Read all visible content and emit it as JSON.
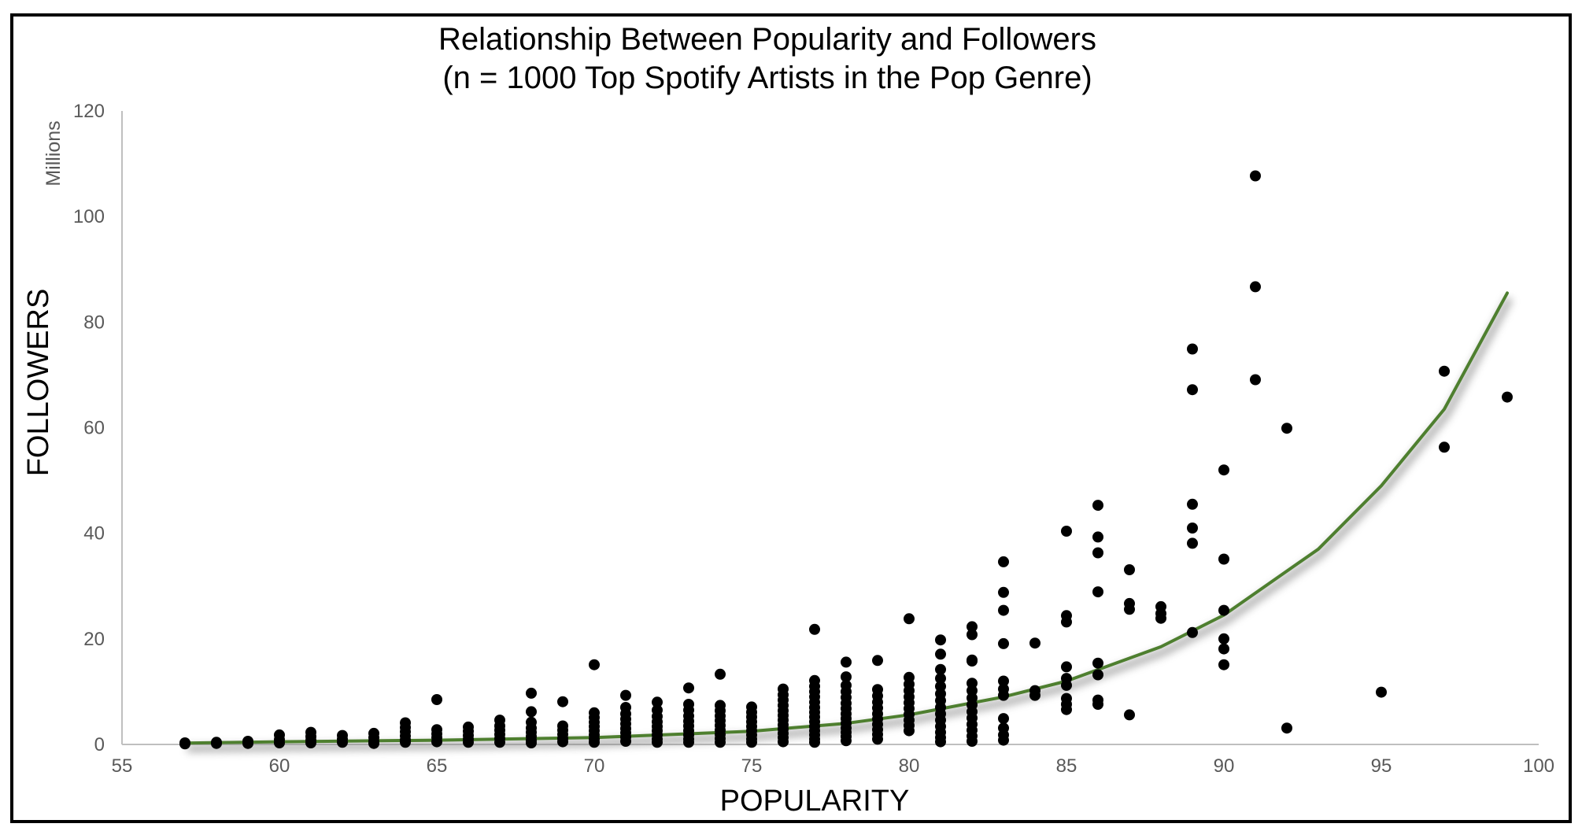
{
  "chart_data": {
    "type": "scatter",
    "title": "Relationship Between Popularity and Followers",
    "subtitle": "(n = 1000 Top Spotify Artists in the Pop Genre)",
    "xlabel": "POPULARITY",
    "ylabel": "FOLLOWERS",
    "y_unit_label": "Millions",
    "xlim": [
      55,
      100
    ],
    "ylim": [
      0,
      120
    ],
    "x_ticks": [
      55,
      60,
      65,
      70,
      75,
      80,
      85,
      90,
      95,
      100
    ],
    "y_ticks": [
      0,
      20,
      40,
      60,
      80,
      100,
      120
    ],
    "x_tick_labels": [
      "55",
      "60",
      "65",
      "70",
      "75",
      "80",
      "85",
      "90",
      "95",
      "100"
    ],
    "y_tick_labels": [
      "0",
      "20",
      "40",
      "60",
      "80",
      "100",
      "120"
    ],
    "grid": false,
    "legend": "none",
    "marker_color": "#000000",
    "trendline": {
      "type": "exponential",
      "color": "#4e7f2f",
      "x_range": [
        57,
        99
      ],
      "points": [
        [
          57,
          0.25
        ],
        [
          60,
          0.5
        ],
        [
          65,
          0.8
        ],
        [
          70,
          1.3
        ],
        [
          75,
          2.5
        ],
        [
          78,
          4.0
        ],
        [
          80,
          5.6
        ],
        [
          83,
          9.0
        ],
        [
          85,
          12.0
        ],
        [
          88,
          18.5
        ],
        [
          90,
          24.5
        ],
        [
          93,
          37.0
        ],
        [
          95,
          49.0
        ],
        [
          97,
          63.5
        ],
        [
          99,
          85.5
        ]
      ]
    },
    "series": [
      {
        "points": [
          [
            57,
            0.3
          ],
          [
            57,
            0.1
          ],
          [
            58,
            0.4
          ],
          [
            58,
            0.2
          ],
          [
            59,
            0.6
          ],
          [
            59,
            0.2
          ],
          [
            60,
            1.8
          ],
          [
            60,
            0.9
          ],
          [
            60,
            0.3
          ],
          [
            61,
            2.3
          ],
          [
            61,
            1.5
          ],
          [
            61,
            0.8
          ],
          [
            61,
            0.3
          ],
          [
            62,
            1.7
          ],
          [
            62,
            1.0
          ],
          [
            62,
            0.4
          ],
          [
            63,
            2.1
          ],
          [
            63,
            1.3
          ],
          [
            63,
            0.6
          ],
          [
            63,
            0.2
          ],
          [
            64,
            4.1
          ],
          [
            64,
            3.2
          ],
          [
            64,
            2.4
          ],
          [
            64,
            1.6
          ],
          [
            64,
            0.9
          ],
          [
            64,
            0.4
          ],
          [
            65,
            8.5
          ],
          [
            65,
            2.8
          ],
          [
            65,
            2.0
          ],
          [
            65,
            1.3
          ],
          [
            65,
            0.5
          ],
          [
            66,
            3.3
          ],
          [
            66,
            2.5
          ],
          [
            66,
            1.7
          ],
          [
            66,
            1.0
          ],
          [
            66,
            0.4
          ],
          [
            67,
            4.6
          ],
          [
            67,
            3.5
          ],
          [
            67,
            2.7
          ],
          [
            67,
            1.9
          ],
          [
            67,
            1.1
          ],
          [
            67,
            0.4
          ],
          [
            68,
            9.7
          ],
          [
            68,
            6.2
          ],
          [
            68,
            4.2
          ],
          [
            68,
            3.1
          ],
          [
            68,
            2.3
          ],
          [
            68,
            1.5
          ],
          [
            68,
            0.8
          ],
          [
            68,
            0.3
          ],
          [
            69,
            8.1
          ],
          [
            69,
            3.5
          ],
          [
            69,
            2.7
          ],
          [
            69,
            1.9
          ],
          [
            69,
            1.1
          ],
          [
            69,
            0.5
          ],
          [
            70,
            15.1
          ],
          [
            70,
            6.0
          ],
          [
            70,
            5.1
          ],
          [
            70,
            4.2
          ],
          [
            70,
            3.4
          ],
          [
            70,
            2.6
          ],
          [
            70,
            1.8
          ],
          [
            70,
            1.0
          ],
          [
            70,
            0.4
          ],
          [
            71,
            9.3
          ],
          [
            71,
            7.0
          ],
          [
            71,
            5.8
          ],
          [
            71,
            4.8
          ],
          [
            71,
            3.9
          ],
          [
            71,
            3.0
          ],
          [
            71,
            2.2
          ],
          [
            71,
            1.4
          ],
          [
            71,
            0.6
          ],
          [
            72,
            8.0
          ],
          [
            72,
            6.5
          ],
          [
            72,
            5.3
          ],
          [
            72,
            4.3
          ],
          [
            72,
            3.4
          ],
          [
            72,
            2.6
          ],
          [
            72,
            1.8
          ],
          [
            72,
            1.0
          ],
          [
            72,
            0.4
          ],
          [
            73,
            10.7
          ],
          [
            73,
            7.6
          ],
          [
            73,
            6.5
          ],
          [
            73,
            5.4
          ],
          [
            73,
            4.4
          ],
          [
            73,
            3.5
          ],
          [
            73,
            2.6
          ],
          [
            73,
            1.8
          ],
          [
            73,
            1.0
          ],
          [
            73,
            0.4
          ],
          [
            74,
            13.3
          ],
          [
            74,
            7.4
          ],
          [
            74,
            6.4
          ],
          [
            74,
            5.4
          ],
          [
            74,
            4.5
          ],
          [
            74,
            3.6
          ],
          [
            74,
            2.7
          ],
          [
            74,
            1.9
          ],
          [
            74,
            1.1
          ],
          [
            74,
            0.4
          ],
          [
            75,
            7.1
          ],
          [
            75,
            6.1
          ],
          [
            75,
            5.2
          ],
          [
            75,
            4.3
          ],
          [
            75,
            3.4
          ],
          [
            75,
            2.6
          ],
          [
            75,
            1.8
          ],
          [
            75,
            1.0
          ],
          [
            75,
            0.4
          ],
          [
            76,
            10.5
          ],
          [
            76,
            9.4
          ],
          [
            76,
            8.4
          ],
          [
            76,
            7.4
          ],
          [
            76,
            6.4
          ],
          [
            76,
            5.5
          ],
          [
            76,
            4.6
          ],
          [
            76,
            3.7
          ],
          [
            76,
            2.9
          ],
          [
            76,
            2.1
          ],
          [
            76,
            1.3
          ],
          [
            76,
            0.5
          ],
          [
            77,
            21.8
          ],
          [
            77,
            12.1
          ],
          [
            77,
            11.0
          ],
          [
            77,
            10.0
          ],
          [
            77,
            9.0
          ],
          [
            77,
            8.0
          ],
          [
            77,
            7.0
          ],
          [
            77,
            6.1
          ],
          [
            77,
            5.2
          ],
          [
            77,
            4.3
          ],
          [
            77,
            3.4
          ],
          [
            77,
            2.6
          ],
          [
            77,
            1.8
          ],
          [
            77,
            1.0
          ],
          [
            77,
            0.4
          ],
          [
            78,
            15.6
          ],
          [
            78,
            12.8
          ],
          [
            78,
            11.2
          ],
          [
            78,
            10.0
          ],
          [
            78,
            8.9
          ],
          [
            78,
            7.8
          ],
          [
            78,
            6.8
          ],
          [
            78,
            5.8
          ],
          [
            78,
            4.9
          ],
          [
            78,
            4.0
          ],
          [
            78,
            3.1
          ],
          [
            78,
            2.3
          ],
          [
            78,
            1.5
          ],
          [
            78,
            0.7
          ],
          [
            79,
            15.9
          ],
          [
            79,
            10.4
          ],
          [
            79,
            9.2
          ],
          [
            79,
            8.0
          ],
          [
            79,
            6.9
          ],
          [
            79,
            5.8
          ],
          [
            79,
            4.8
          ],
          [
            79,
            3.8
          ],
          [
            79,
            2.8
          ],
          [
            79,
            1.9
          ],
          [
            79,
            1.0
          ],
          [
            80,
            23.8
          ],
          [
            80,
            12.7
          ],
          [
            80,
            11.4
          ],
          [
            80,
            10.2
          ],
          [
            80,
            9.0
          ],
          [
            80,
            7.9
          ],
          [
            80,
            6.8
          ],
          [
            80,
            5.7
          ],
          [
            80,
            4.6
          ],
          [
            80,
            3.6
          ],
          [
            80,
            2.6
          ],
          [
            81,
            19.8
          ],
          [
            81,
            17.1
          ],
          [
            81,
            14.2
          ],
          [
            81,
            12.5
          ],
          [
            81,
            11.0
          ],
          [
            81,
            9.6
          ],
          [
            81,
            8.3
          ],
          [
            81,
            7.0
          ],
          [
            81,
            5.8
          ],
          [
            81,
            4.6
          ],
          [
            81,
            3.4
          ],
          [
            81,
            2.3
          ],
          [
            81,
            1.3
          ],
          [
            81,
            0.5
          ],
          [
            82,
            22.3
          ],
          [
            82,
            20.8
          ],
          [
            82,
            16.0
          ],
          [
            82,
            15.8
          ],
          [
            82,
            11.6
          ],
          [
            82,
            10.2
          ],
          [
            82,
            8.8
          ],
          [
            82,
            7.5
          ],
          [
            82,
            6.2
          ],
          [
            82,
            5.0
          ],
          [
            82,
            3.8
          ],
          [
            82,
            2.7
          ],
          [
            82,
            1.6
          ],
          [
            82,
            0.6
          ],
          [
            83,
            34.6
          ],
          [
            83,
            28.8
          ],
          [
            83,
            25.4
          ],
          [
            83,
            19.1
          ],
          [
            83,
            12.0
          ],
          [
            83,
            10.5
          ],
          [
            83,
            9.3
          ],
          [
            83,
            4.9
          ],
          [
            83,
            3.1
          ],
          [
            83,
            1.8
          ],
          [
            83,
            0.8
          ],
          [
            84,
            19.2
          ],
          [
            84,
            10.2
          ],
          [
            84,
            9.3
          ],
          [
            85,
            40.4
          ],
          [
            85,
            24.4
          ],
          [
            85,
            23.2
          ],
          [
            85,
            14.7
          ],
          [
            85,
            12.5
          ],
          [
            85,
            11.2
          ],
          [
            85,
            8.7
          ],
          [
            85,
            7.6
          ],
          [
            85,
            6.6
          ],
          [
            86,
            45.3
          ],
          [
            86,
            39.3
          ],
          [
            86,
            36.3
          ],
          [
            86,
            28.9
          ],
          [
            86,
            15.4
          ],
          [
            86,
            13.2
          ],
          [
            86,
            8.4
          ],
          [
            86,
            7.6
          ],
          [
            87,
            33.1
          ],
          [
            87,
            26.7
          ],
          [
            87,
            25.6
          ],
          [
            87,
            5.6
          ],
          [
            88,
            26.1
          ],
          [
            88,
            24.8
          ],
          [
            88,
            23.9
          ],
          [
            89,
            74.9
          ],
          [
            89,
            67.2
          ],
          [
            89,
            45.5
          ],
          [
            89,
            41.0
          ],
          [
            89,
            38.1
          ],
          [
            89,
            21.2
          ],
          [
            90,
            52.0
          ],
          [
            90,
            35.1
          ],
          [
            90,
            25.4
          ],
          [
            90,
            20.0
          ],
          [
            90,
            18.1
          ],
          [
            90,
            15.1
          ],
          [
            91,
            107.7
          ],
          [
            91,
            86.7
          ],
          [
            91,
            69.1
          ],
          [
            92,
            59.9
          ],
          [
            92,
            3.1
          ],
          [
            95,
            9.9
          ],
          [
            97,
            70.7
          ],
          [
            97,
            56.3
          ],
          [
            99,
            65.8
          ]
        ]
      }
    ]
  }
}
